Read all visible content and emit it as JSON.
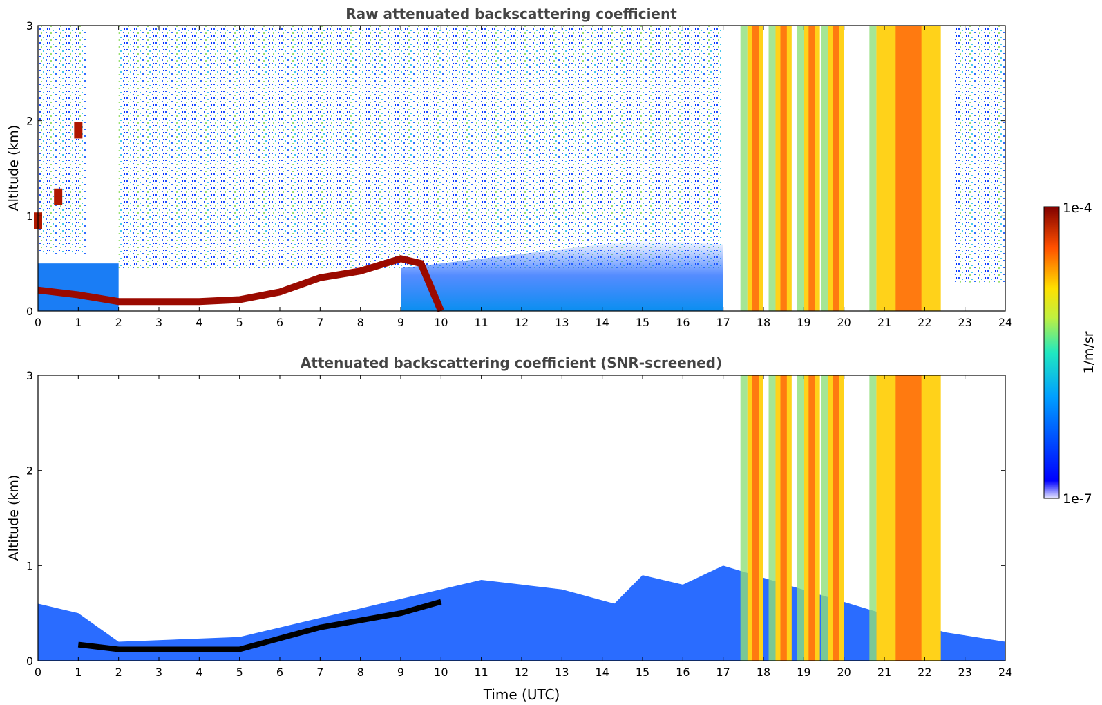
{
  "figure": {
    "xlabel": "Time (UTC)",
    "colorbar": {
      "label": "1/m/sr",
      "max_label": "1e-4",
      "min_label": "1e-7",
      "scale": "log"
    }
  },
  "chart_data": [
    {
      "type": "heatmap",
      "title": "Raw attenuated backscattering coefficient",
      "xlabel": "",
      "ylabel": "Altitude (km)",
      "xlim": [
        0,
        24
      ],
      "ylim": [
        0,
        3
      ],
      "xticks": [
        "0",
        "1",
        "2",
        "3",
        "4",
        "5",
        "6",
        "7",
        "8",
        "9",
        "10",
        "11",
        "12",
        "13",
        "14",
        "15",
        "16",
        "17",
        "18",
        "19",
        "20",
        "21",
        "22",
        "23",
        "24"
      ],
      "yticks": [
        "0",
        "1",
        "2",
        "3"
      ],
      "features": {
        "boundary_layer_top_km": [
          [
            0,
            0.22
          ],
          [
            1,
            0.17
          ],
          [
            2,
            0.1
          ],
          [
            3,
            0.1
          ],
          [
            4,
            0.1
          ],
          [
            5,
            0.12
          ],
          [
            6,
            0.2
          ],
          [
            7,
            0.35
          ],
          [
            8,
            0.42
          ],
          [
            9,
            0.55
          ],
          [
            9.5,
            0.5
          ],
          [
            10,
            0.0
          ]
        ],
        "low_cloud_km": [
          [
            0.0,
            0.95
          ],
          [
            0.5,
            1.2
          ],
          [
            1.0,
            1.9
          ]
        ],
        "convective_cloud_bands_utc": [
          [
            17.6,
            18.0
          ],
          [
            18.3,
            18.7
          ],
          [
            19.0,
            19.4
          ],
          [
            19.6,
            20.0
          ],
          [
            20.8,
            22.4
          ]
        ]
      }
    },
    {
      "type": "heatmap",
      "title": "Attenuated backscattering coefficient (SNR-screened)",
      "xlabel": "Time (UTC)",
      "ylabel": "Altitude (km)",
      "xlim": [
        0,
        24
      ],
      "ylim": [
        0,
        3
      ],
      "xticks": [
        "0",
        "1",
        "2",
        "3",
        "4",
        "5",
        "6",
        "7",
        "8",
        "9",
        "10",
        "11",
        "12",
        "13",
        "14",
        "15",
        "16",
        "17",
        "18",
        "19",
        "20",
        "21",
        "22",
        "23",
        "24"
      ],
      "yticks": [
        "0",
        "1",
        "2",
        "3"
      ],
      "features": {
        "valid_signal_top_km": [
          [
            0,
            0.6
          ],
          [
            1,
            0.5
          ],
          [
            2,
            0.2
          ],
          [
            5,
            0.25
          ],
          [
            7,
            0.45
          ],
          [
            9,
            0.65
          ],
          [
            11,
            0.85
          ],
          [
            13,
            0.75
          ],
          [
            14.3,
            0.6
          ],
          [
            15,
            0.9
          ],
          [
            16,
            0.8
          ],
          [
            17,
            1.0
          ],
          [
            22.5,
            0.3
          ],
          [
            24,
            0.2
          ]
        ],
        "convective_cloud_bands_utc": [
          [
            17.6,
            18.0
          ],
          [
            18.3,
            18.7
          ],
          [
            19.0,
            19.4
          ],
          [
            19.6,
            20.0
          ],
          [
            20.8,
            22.4
          ]
        ]
      }
    }
  ]
}
